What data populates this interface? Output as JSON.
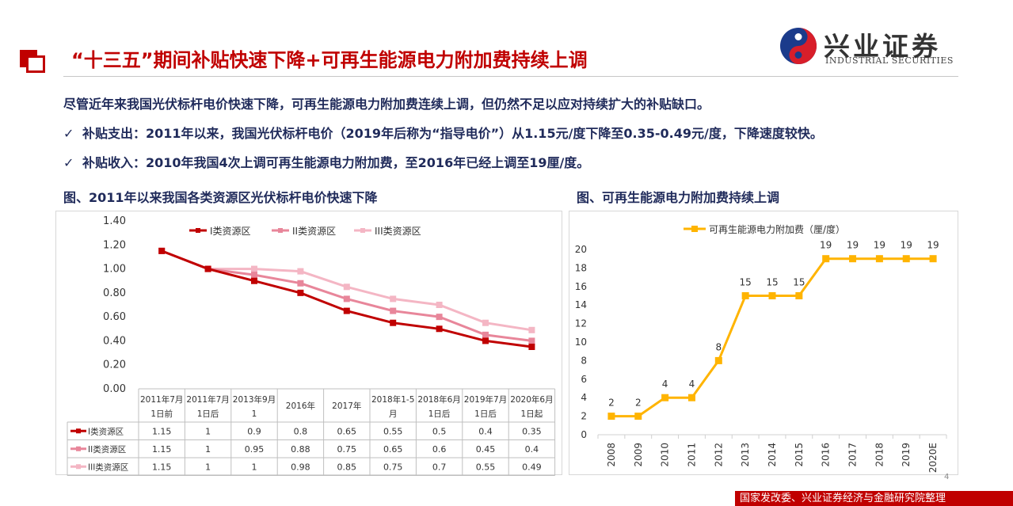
{
  "header": {
    "title": "“十三五”期间补贴快速下降+可再生能源电力附加费持续上调",
    "brand_cn": "兴业证券",
    "brand_en": "INDUSTRIAL SECURITIES",
    "accent_color": "#c00000"
  },
  "bullets": {
    "intro": "尽管近年来我国光伏标杆电价快速下降，可再生能源电力附加费连续上调，但仍然不足以应对持续扩大的补贴缺口。",
    "item1": "补贴支出：2011年以来，我国光伏标杆电价（2019年后称为“指导电价”）从1.15元/度下降至0.35-0.49元/度，下降速度较快。",
    "item2": "补贴收入：2010年我国4次上调可再生能源电力附加费，至2016年已经上调至19厘/度。",
    "check_icon": "check-icon"
  },
  "figures": {
    "left_caption": "图、2011年以来我国各类资源区光伏标杆电价快速下降",
    "right_caption": "图、可再生能源电力附加费持续上调"
  },
  "page_number": "4",
  "source": "国家发改委、兴业证券经济与金融研究院整理",
  "chart_data": [
    {
      "type": "line",
      "categories": [
        [
          "2011年7月",
          "1日前"
        ],
        [
          "2011年7月",
          "1日后"
        ],
        [
          "2013年9月",
          "1"
        ],
        [
          "2016年"
        ],
        [
          "2017年"
        ],
        [
          "2018年1-5",
          "月"
        ],
        [
          "2018年6月",
          "1日后"
        ],
        [
          "2019年7月",
          "1日后"
        ],
        [
          "2020年6月",
          "1日起"
        ]
      ],
      "series": [
        {
          "name": "I类资源区",
          "color": "#c00000",
          "values": [
            1.15,
            1,
            0.9,
            0.8,
            0.65,
            0.55,
            0.5,
            0.4,
            0.35
          ],
          "table": [
            "1.15",
            "1",
            "0.9",
            "0.8",
            "0.65",
            "0.55",
            "0.5",
            "0.4",
            "0.35"
          ]
        },
        {
          "name": "II类资源区",
          "color": "#e8869a",
          "values": [
            1.15,
            1,
            0.95,
            0.88,
            0.75,
            0.65,
            0.6,
            0.45,
            0.4
          ],
          "table": [
            "1.15",
            "1",
            "0.95",
            "0.88",
            "0.75",
            "0.65",
            "0.6",
            "0.45",
            "0.4"
          ]
        },
        {
          "name": "III类资源区",
          "color": "#f4b6c4",
          "values": [
            1.15,
            1,
            1,
            0.98,
            0.85,
            0.75,
            0.7,
            0.55,
            0.49
          ],
          "table": [
            "1.15",
            "1",
            "1",
            "0.98",
            "0.85",
            "0.75",
            "0.7",
            "0.55",
            "0.49"
          ]
        }
      ],
      "yticks": [
        "0.00",
        "0.20",
        "0.40",
        "0.60",
        "0.80",
        "1.00",
        "1.20",
        "1.40"
      ],
      "ylim": [
        0,
        1.4
      ],
      "grid": false,
      "legend": "top",
      "data_table": true
    },
    {
      "type": "line",
      "categories": [
        "2008",
        "2009",
        "2010",
        "2011",
        "2012",
        "2013",
        "2014",
        "2015",
        "2016",
        "2017",
        "2018",
        "2019",
        "2020E"
      ],
      "series": [
        {
          "name": "可再生能源电力附加费（厘/度）",
          "color": "#ffb400",
          "values": [
            2,
            2,
            4,
            4,
            8,
            15,
            15,
            15,
            19,
            19,
            19,
            19,
            19
          ]
        }
      ],
      "yticks": [
        "0",
        "2",
        "4",
        "6",
        "8",
        "10",
        "12",
        "14",
        "16",
        "18",
        "20"
      ],
      "ylim": [
        0,
        20
      ],
      "grid": false,
      "legend": "top",
      "data_labels": true
    }
  ]
}
